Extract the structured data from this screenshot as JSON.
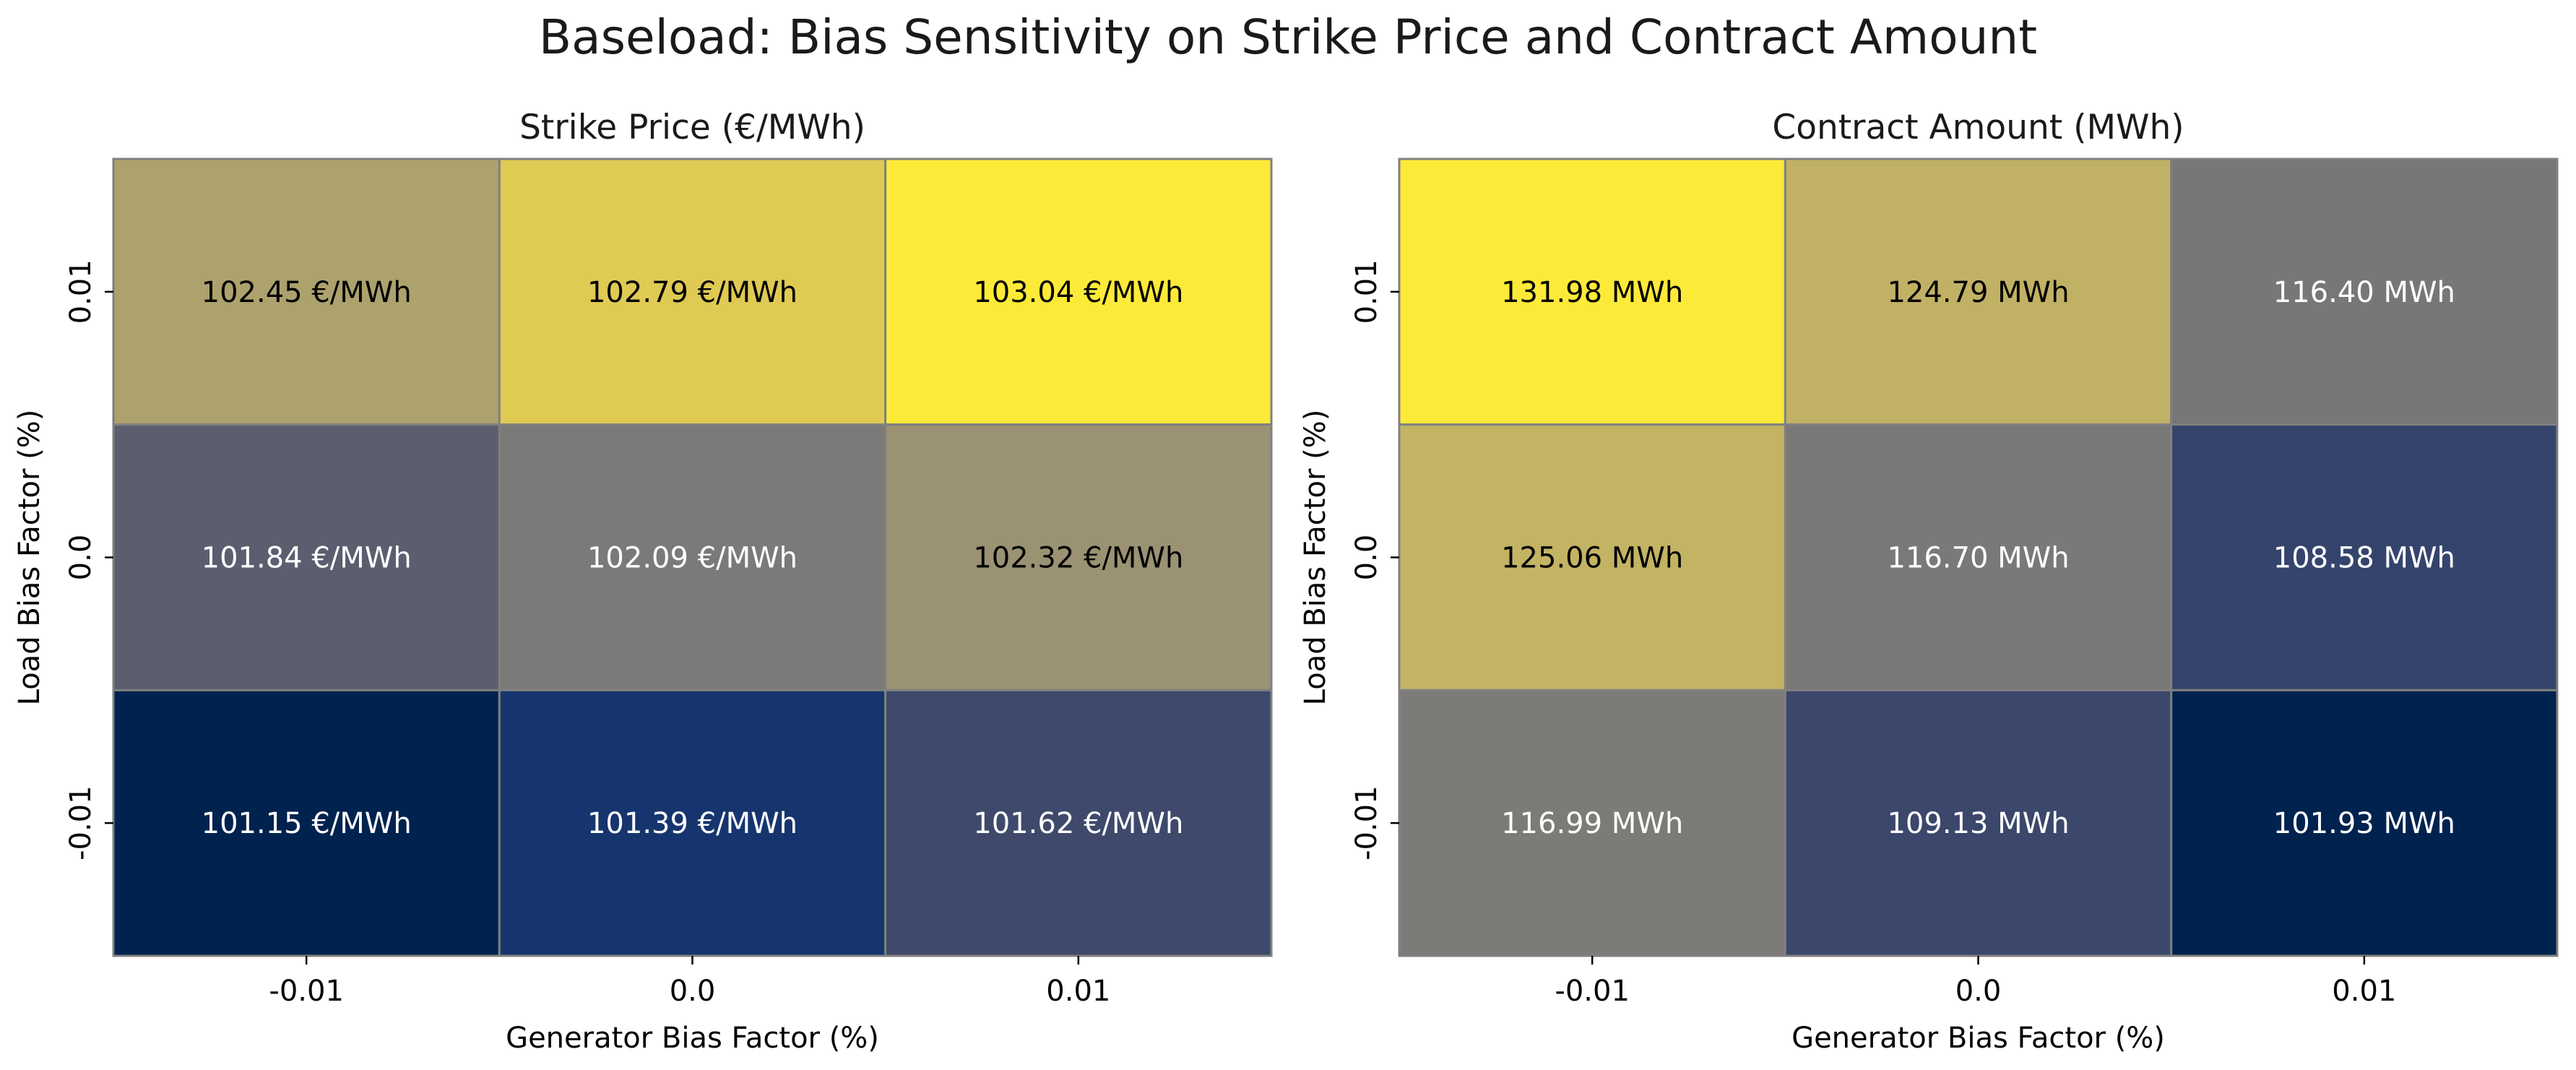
{
  "figure": {
    "title": "Baseload: Bias Sensitivity on Strike Price and Contract Amount"
  },
  "chart_data": [
    {
      "type": "heatmap",
      "title": "Strike Price (€/MWh)",
      "xlabel": "Generator Bias Factor (%)",
      "ylabel": "Load Bias Factor (%)",
      "x_categories": [
        "-0.01",
        "0.0",
        "0.01"
      ],
      "y_categories": [
        "0.01",
        "0.0",
        "-0.01"
      ],
      "unit": "€/MWh",
      "values": [
        [
          102.45,
          102.79,
          103.04
        ],
        [
          101.84,
          102.09,
          102.32
        ],
        [
          101.15,
          101.39,
          101.62
        ]
      ],
      "labels": [
        [
          "102.45 €/MWh",
          "102.79 €/MWh",
          "103.04 €/MWh"
        ],
        [
          "101.84 €/MWh",
          "102.09 €/MWh",
          "102.32 €/MWh"
        ],
        [
          "101.15 €/MWh",
          "101.39 €/MWh",
          "101.62 €/MWh"
        ]
      ],
      "colormap": "cividis",
      "colorbar": false
    },
    {
      "type": "heatmap",
      "title": "Contract Amount (MWh)",
      "xlabel": "Generator Bias Factor (%)",
      "ylabel": "Load Bias Factor (%)",
      "x_categories": [
        "-0.01",
        "0.0",
        "0.01"
      ],
      "y_categories": [
        "0.01",
        "0.0",
        "-0.01"
      ],
      "unit": "MWh",
      "values": [
        [
          131.98,
          124.79,
          116.4
        ],
        [
          125.06,
          116.7,
          108.58
        ],
        [
          116.99,
          109.13,
          101.93
        ]
      ],
      "labels": [
        [
          "131.98 MWh",
          "124.79 MWh",
          "116.40 MWh"
        ],
        [
          "125.06 MWh",
          "116.70 MWh",
          "108.58 MWh"
        ],
        [
          "116.99 MWh",
          "109.13 MWh",
          "101.93 MWh"
        ]
      ],
      "colormap": "cividis",
      "colorbar": false
    }
  ]
}
